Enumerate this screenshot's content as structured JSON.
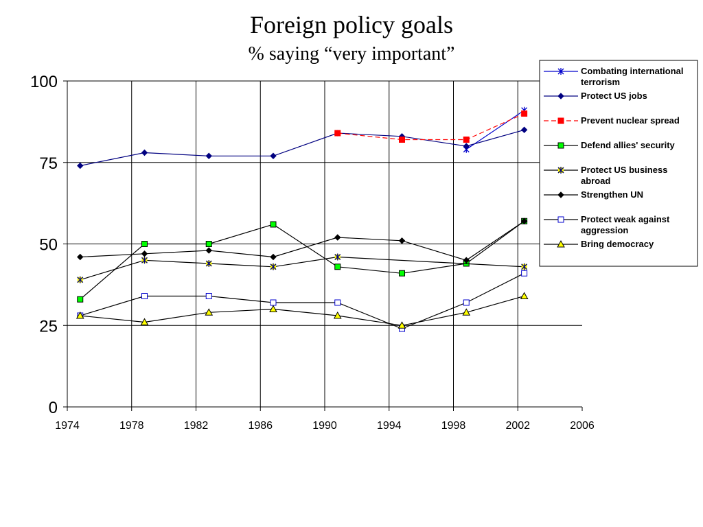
{
  "chart_data": {
    "type": "line",
    "title": "Foreign policy goals",
    "subtitle": "% saying “very important”",
    "xlabel": "",
    "ylabel": "",
    "xlim": [
      1974,
      2006
    ],
    "ylim": [
      0,
      100
    ],
    "x_ticks": [
      "1974",
      "1978",
      "1982",
      "1986",
      "1990",
      "1994",
      "1998",
      "2002",
      "2006"
    ],
    "y_ticks": [
      "0",
      "25",
      "50",
      "75",
      "100"
    ],
    "grid": true,
    "legend_position": "right",
    "series": [
      {
        "name": "Combating international terrorism",
        "name_lines": [
          "Combating international",
          "terrorism"
        ],
        "color": "#0000cc",
        "marker": "star",
        "marker_fill": "#0000cc",
        "dashed": false,
        "points": [
          [
            1998.8,
            79
          ],
          [
            2002.4,
            91
          ]
        ]
      },
      {
        "name": "Protect US jobs",
        "name_lines": [
          "Protect US jobs"
        ],
        "color": "#000080",
        "marker": "diamond",
        "marker_fill": "#000080",
        "dashed": false,
        "points": [
          [
            1974.8,
            74
          ],
          [
            1978.8,
            78
          ],
          [
            1982.8,
            77
          ],
          [
            1986.8,
            77
          ],
          [
            1990.8,
            84
          ],
          [
            1994.8,
            83
          ],
          [
            1998.8,
            80
          ],
          [
            2002.4,
            85
          ]
        ]
      },
      {
        "name": "Prevent nuclear spread",
        "name_lines": [
          "Prevent nuclear spread"
        ],
        "color": "#ff0000",
        "marker": "square",
        "marker_fill": "#ff0000",
        "dashed": true,
        "points": [
          [
            1990.8,
            84
          ],
          [
            1994.8,
            82
          ],
          [
            1998.8,
            82
          ],
          [
            2002.4,
            90
          ]
        ]
      },
      {
        "name": "Defend allies' security",
        "name_lines": [
          "Defend allies' security"
        ],
        "color": "#000000",
        "marker": "square",
        "marker_fill": "#00ff00",
        "dashed": false,
        "points": [
          [
            1974.8,
            33
          ],
          [
            1978.8,
            50
          ],
          [
            1982.8,
            50
          ],
          [
            1986.8,
            56
          ],
          [
            1990.8,
            43
          ],
          [
            1994.8,
            41
          ],
          [
            1998.8,
            44
          ],
          [
            2002.4,
            57
          ]
        ]
      },
      {
        "name": "Protect US business abroad",
        "name_lines": [
          "Protect US business",
          "abroad"
        ],
        "color": "#000000",
        "marker": "star",
        "marker_fill": "#ffff00",
        "dashed": false,
        "points": [
          [
            1974.8,
            39
          ],
          [
            1978.8,
            45
          ],
          [
            1982.8,
            44
          ],
          [
            1986.8,
            43
          ],
          [
            1990.8,
            46
          ],
          [
            2002.4,
            43
          ]
        ]
      },
      {
        "name": "Strengthen UN",
        "name_lines": [
          "Strengthen UN"
        ],
        "color": "#000000",
        "marker": "diamond",
        "marker_fill": "#000000",
        "dashed": false,
        "points": [
          [
            1974.8,
            46
          ],
          [
            1978.8,
            47
          ],
          [
            1982.8,
            48
          ],
          [
            1986.8,
            46
          ],
          [
            1990.8,
            52
          ],
          [
            1994.8,
            51
          ],
          [
            1998.8,
            45
          ],
          [
            2002.4,
            57
          ]
        ]
      },
      {
        "name": "Protect weak against aggression",
        "name_lines": [
          "Protect weak against",
          "aggression"
        ],
        "color": "#000000",
        "marker": "square",
        "marker_fill": "#ffffff",
        "marker_stroke": "#0000cc",
        "dashed": false,
        "points": [
          [
            1974.8,
            28
          ],
          [
            1978.8,
            34
          ],
          [
            1982.8,
            34
          ],
          [
            1986.8,
            32
          ],
          [
            1990.8,
            32
          ],
          [
            1994.8,
            24
          ],
          [
            1998.8,
            32
          ],
          [
            2002.4,
            41
          ]
        ]
      },
      {
        "name": "Bring democracy",
        "name_lines": [
          "Bring democracy"
        ],
        "color": "#000000",
        "marker": "triangle",
        "marker_fill": "#ffff00",
        "dashed": false,
        "points": [
          [
            1974.8,
            28
          ],
          [
            1978.8,
            26
          ],
          [
            1982.8,
            29
          ],
          [
            1986.8,
            30
          ],
          [
            1990.8,
            28
          ],
          [
            1994.8,
            25
          ],
          [
            1998.8,
            29
          ],
          [
            2002.4,
            34
          ]
        ]
      }
    ]
  }
}
